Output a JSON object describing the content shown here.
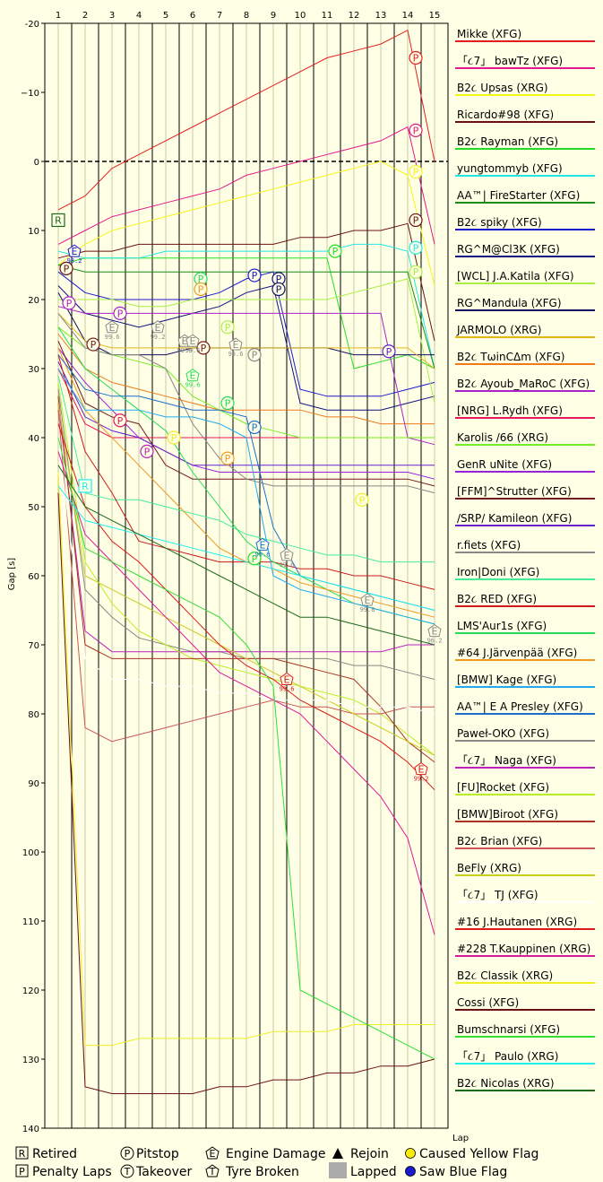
{
  "chart_data": {
    "type": "line",
    "xlabel": "Lap",
    "ylabel": "Gap [s]",
    "xlim": [
      0.5,
      15.5
    ],
    "ylim": [
      -20,
      140
    ],
    "x_ticks": [
      1,
      2,
      3,
      4,
      5,
      6,
      7,
      8,
      9,
      10,
      11,
      12,
      13,
      14,
      15
    ],
    "y_ticks": [
      -20,
      -10,
      0,
      10,
      20,
      30,
      40,
      50,
      60,
      70,
      80,
      90,
      100,
      110,
      120,
      130,
      140
    ],
    "y_tick_labels": [
      "-20",
      "−10",
      "0",
      "10",
      "20",
      "30",
      "40",
      "50",
      "60",
      "70",
      "80",
      "90",
      "100",
      "110",
      "120",
      "130",
      "140"
    ],
    "zero_line": 0,
    "series": [
      {
        "name": "Mikke (XFG)",
        "color": "#e02020",
        "values": [
          7,
          5,
          1,
          -1,
          -3,
          -5,
          -7,
          -9,
          -11,
          -13,
          -15,
          -16,
          -17,
          -19,
          0
        ]
      },
      {
        "name": "「૮7」 bawTz (XFG)",
        "color": "#e01a8c",
        "values": [
          12,
          10,
          8,
          7,
          6,
          5,
          4,
          2,
          1,
          0,
          -1,
          -2,
          -3,
          -5,
          12
        ]
      },
      {
        "name": "B2૮ Upsas (XRG)",
        "color": "#f5f51a",
        "values": [
          15,
          12,
          10,
          9,
          8,
          7,
          6,
          5,
          4,
          3,
          2,
          1,
          0,
          2,
          18
        ]
      },
      {
        "name": "Ricardo#98 (XFG)",
        "color": "#6b1010",
        "values": [
          14,
          13,
          13,
          12,
          12,
          12,
          12,
          12,
          12,
          11,
          11,
          10,
          10,
          9,
          26
        ]
      },
      {
        "name": "B2૮ Rayman (XFG)",
        "color": "#22dd22",
        "values": [
          15,
          14,
          14,
          14,
          14,
          14,
          14,
          14,
          14,
          14,
          14,
          30,
          29,
          28,
          30
        ]
      },
      {
        "name": "yungtommyb (XFG)",
        "color": "#22e5e5",
        "values": [
          13,
          14,
          14,
          14,
          13,
          13,
          13,
          13,
          13,
          13,
          13,
          12,
          12,
          13,
          30
        ]
      },
      {
        "name": "AA™| FireStarter (XFG)",
        "color": "#1a8c1a",
        "values": [
          15,
          16,
          16,
          16,
          16,
          16,
          16,
          16,
          16,
          16,
          16,
          16,
          16,
          16,
          30
        ]
      },
      {
        "name": "B2૮ spiky (XFG)",
        "color": "#1a1acc",
        "values": [
          16,
          19,
          20,
          20,
          20,
          20,
          19,
          17,
          16,
          33,
          34,
          34,
          34,
          33,
          32
        ]
      },
      {
        "name": "RG^M@Cl3K (XFG)",
        "color": "#101080",
        "values": [
          18,
          22,
          23,
          24,
          23,
          22,
          21,
          19,
          18,
          35,
          36,
          36,
          36,
          35,
          34
        ]
      },
      {
        "name": "[WCL] J.A.Katila (XFG)",
        "color": "#aaee44",
        "values": [
          20,
          20,
          20,
          21,
          21,
          20,
          20,
          20,
          20,
          20,
          20,
          19,
          18,
          17,
          35
        ]
      },
      {
        "name": "RG^Mandula (XFG)",
        "color": "#101060",
        "values": [
          19,
          26,
          28,
          28,
          28,
          27,
          27,
          27,
          27,
          27,
          27,
          28,
          28,
          28,
          28
        ]
      },
      {
        "name": "JARMOLO (XRG)",
        "color": "#e5b81a",
        "values": [
          22,
          26,
          27,
          27,
          27,
          27,
          27,
          27,
          27,
          27,
          27,
          27,
          27,
          27,
          30
        ]
      },
      {
        "name": "B2૮ TωinCΔm (XFG)",
        "color": "#ee7a1a",
        "values": [
          25,
          30,
          32,
          33,
          34,
          35,
          36,
          36,
          36,
          36,
          37,
          37,
          38,
          38,
          38
        ]
      },
      {
        "name": "B2૮ Ayoub_MaRoC (XFG)",
        "color": "#aa22cc",
        "values": [
          21,
          22,
          22,
          22,
          22,
          22,
          22,
          22,
          22,
          22,
          22,
          22,
          22,
          40,
          41
        ]
      },
      {
        "name": "[NRG] L.Rydh (XFG)",
        "color": "#e51a5c",
        "values": [
          30,
          38,
          40,
          40,
          40,
          40,
          40,
          40,
          40,
          40,
          40,
          40,
          40,
          40,
          40
        ]
      },
      {
        "name": "Karolis /66 (XRG)",
        "color": "#77ee22",
        "values": [
          24,
          27,
          28,
          29,
          30,
          34,
          36,
          38,
          39,
          40,
          40,
          40,
          40,
          40,
          40
        ]
      },
      {
        "name": "GenR uNite (XFG)",
        "color": "#9922dd",
        "values": [
          27,
          32,
          36,
          40,
          42,
          44,
          45,
          45,
          45,
          45,
          45,
          45,
          45,
          45,
          46
        ]
      },
      {
        "name": "[FFM]^Strutter (XFG)",
        "color": "#701a1a",
        "values": [
          26,
          35,
          37,
          38,
          44,
          46,
          46,
          46,
          46,
          46,
          46,
          46,
          46,
          46,
          47
        ]
      },
      {
        "name": "/SRP/ Kamileon (XFG)",
        "color": "#6622cc",
        "values": [
          29,
          37,
          39,
          40,
          42,
          44,
          44,
          44,
          44,
          44,
          44,
          44,
          44,
          44,
          44
        ]
      },
      {
        "name": "r.fiets (XFG)",
        "color": "#888888",
        "values": [
          22,
          27,
          28,
          28,
          30,
          38,
          43,
          46,
          47,
          47,
          47,
          47,
          47,
          47,
          48
        ]
      },
      {
        "name": "Iron|Doni (XFG)",
        "color": "#44ee99",
        "values": [
          31,
          48,
          49,
          49,
          50,
          51,
          52,
          54,
          55,
          56,
          57,
          57,
          58,
          58,
          58
        ]
      },
      {
        "name": "B2૮ RED (XFG)",
        "color": "#cc1a1a",
        "values": [
          28,
          42,
          48,
          55,
          56,
          57,
          58,
          58,
          58,
          59,
          59,
          60,
          60,
          61,
          62
        ]
      },
      {
        "name": "LMS'Aur1s (XFG)",
        "color": "#22dd55",
        "values": [
          24,
          30,
          33,
          36,
          39,
          45,
          50,
          55,
          58,
          60,
          62,
          64,
          65,
          66,
          67
        ]
      },
      {
        "name": "#64 J.Järvenpää (XFG)",
        "color": "#ee9922",
        "values": [
          27,
          36,
          40,
          44,
          48,
          52,
          56,
          58,
          59,
          61,
          62,
          63,
          64,
          65,
          66
        ]
      },
      {
        "name": "[BMW] Kage (XFG)",
        "color": "#22aaee",
        "values": [
          30,
          36,
          36,
          36,
          37,
          37,
          38,
          40,
          60,
          62,
          63,
          64,
          65,
          66,
          67
        ]
      },
      {
        "name": "AA™| E A Presley (XFG)",
        "color": "#1a6ecc",
        "values": [
          28,
          33,
          34,
          34,
          35,
          36,
          36,
          37,
          53,
          60,
          61,
          62,
          63,
          64,
          65
        ]
      },
      {
        "name": "Paweł-OKO (XFG)",
        "color": "#888888",
        "values": [
          33,
          62,
          66,
          69,
          70,
          71,
          71,
          72,
          72,
          72,
          72,
          73,
          73,
          74,
          75
        ]
      },
      {
        "name": "「૮7」 Naga (XFG)",
        "color": "#bb22bb",
        "values": [
          35,
          68,
          71,
          71,
          71,
          71,
          71,
          71,
          71,
          71,
          71,
          71,
          71,
          70,
          70
        ]
      },
      {
        "name": "[FU]Rocket (XFG)",
        "color": "#bbee22",
        "values": [
          32,
          58,
          64,
          68,
          70,
          72,
          73,
          74,
          75,
          76,
          77,
          78,
          80,
          83,
          86
        ]
      },
      {
        "name": "[BMW]Biroot (XFG)",
        "color": "#aa3322",
        "values": [
          34,
          70,
          72,
          72,
          72,
          72,
          72,
          72,
          72,
          73,
          74,
          75,
          79,
          84,
          87
        ]
      },
      {
        "name": "B2૮ Brian (XFG)",
        "color": "#cc5555",
        "values": [
          36,
          82,
          84,
          83,
          82,
          81,
          80,
          79,
          78,
          79,
          79,
          80,
          80,
          79,
          79
        ]
      },
      {
        "name": "BeFly (XRG)",
        "color": "#cccc22",
        "values": [
          35,
          60,
          62,
          64,
          66,
          68,
          70,
          72,
          74,
          76,
          78,
          80,
          82,
          84,
          86
        ]
      },
      {
        "name": "「૮7」  TJ (XFG)",
        "color": "#ffffff",
        "values": [
          40,
          72,
          75,
          75,
          76,
          76,
          77,
          77,
          78,
          78,
          78,
          79,
          79,
          79,
          80
        ]
      },
      {
        "name": "#16 J.Hautanen (XRG)",
        "color": "#dd1a1a",
        "values": [
          38,
          50,
          55,
          58,
          62,
          66,
          70,
          73,
          75,
          78,
          80,
          82,
          84,
          87,
          91
        ]
      },
      {
        "name": "#228 T.Kauppinen (XRG)",
        "color": "#dd1a99",
        "values": [
          42,
          54,
          58,
          62,
          66,
          70,
          74,
          76,
          78,
          80,
          84,
          88,
          92,
          98,
          112
        ]
      },
      {
        "name": "B2૮ Classik (XRG)",
        "color": "#eeee22",
        "values": [
          45,
          128,
          128,
          127,
          127,
          127,
          127,
          127,
          126,
          126,
          126,
          125,
          125,
          125,
          125
        ]
      },
      {
        "name": "Cossi (XFG)",
        "color": "#6b1010",
        "values": [
          48,
          134,
          135,
          135,
          135,
          135,
          134,
          134,
          133,
          133,
          132,
          132,
          131,
          131,
          130
        ]
      },
      {
        "name": "Bumschnarsi (XFG)",
        "color": "#33dd33",
        "values": [
          40,
          56,
          58,
          60,
          62,
          64,
          66,
          70,
          76,
          120,
          122,
          124,
          126,
          128,
          130
        ]
      },
      {
        "name": "「૮7」 Paulo (XRG)",
        "color": "#22eeee",
        "values": [
          47,
          52,
          53,
          54,
          55,
          56,
          57,
          58,
          59,
          60,
          61,
          62,
          63,
          64,
          65
        ]
      },
      {
        "name": "B2૮ Nicolas (XRG)",
        "color": "#1a6a1a",
        "values": [
          44,
          50,
          52,
          54,
          56,
          58,
          60,
          62,
          64,
          66,
          66,
          67,
          68,
          69,
          70
        ]
      }
    ],
    "key": {
      "retired": "Retired",
      "pitstop": "Pitstop",
      "engine_damage": "Engine Damage",
      "rejoin": "Rejoin",
      "caused_yellow": "Caused Yellow Flag",
      "penalty_laps": "Penalty Laps",
      "takeover": "Takeover",
      "tyre_broken": "Tyre Broken",
      "lapped": "Lapped",
      "saw_blue": "Saw Blue Flag"
    },
    "events": [
      {
        "type": "R",
        "lap": 1,
        "gap": 8.5,
        "color": "#1a6a1a"
      },
      {
        "type": "R",
        "lap": 2,
        "gap": 47,
        "color": "#22eeee"
      },
      {
        "type": "P",
        "lap": 1.3,
        "gap": 15.5,
        "color": "#6b1010"
      },
      {
        "type": "P",
        "lap": 1.4,
        "gap": 20.5,
        "color": "#aa22cc"
      },
      {
        "type": "P",
        "lap": 2.3,
        "gap": 26.5,
        "color": "#701a1a"
      },
      {
        "type": "P",
        "lap": 3.3,
        "gap": 22,
        "color": "#aa22cc"
      },
      {
        "type": "P",
        "lap": 3.3,
        "gap": 37.5,
        "color": "#e51a5c"
      },
      {
        "type": "P",
        "lap": 4.3,
        "gap": 42,
        "color": "#bb22bb"
      },
      {
        "type": "P",
        "lap": 5.3,
        "gap": 40,
        "color": "#eeee22"
      },
      {
        "type": "P",
        "lap": 6.3,
        "gap": 17,
        "color": "#22dd55"
      },
      {
        "type": "P",
        "lap": 6.3,
        "gap": 18.5,
        "color": "#ee9922"
      },
      {
        "type": "P",
        "lap": 6.4,
        "gap": 27,
        "color": "#701a1a"
      },
      {
        "type": "P",
        "lap": 7.3,
        "gap": 24,
        "color": "#aaee44"
      },
      {
        "type": "P",
        "lap": 7.3,
        "gap": 35,
        "color": "#22dd55"
      },
      {
        "type": "P",
        "lap": 7.3,
        "gap": 43,
        "color": "#ee9922"
      },
      {
        "type": "P",
        "lap": 8.3,
        "gap": 16.5,
        "color": "#1a1acc"
      },
      {
        "type": "P",
        "lap": 8.3,
        "gap": 28,
        "color": "#888888"
      },
      {
        "type": "P",
        "lap": 8.3,
        "gap": 38.5,
        "color": "#1a6ecc"
      },
      {
        "type": "P",
        "lap": 8.3,
        "gap": 57.5,
        "color": "#22dd22"
      },
      {
        "type": "P",
        "lap": 9.2,
        "gap": 17,
        "color": "#101080"
      },
      {
        "type": "P",
        "lap": 9.2,
        "gap": 18.5,
        "color": "#101060"
      },
      {
        "type": "P",
        "lap": 11.3,
        "gap": 13,
        "color": "#22dd22"
      },
      {
        "type": "P",
        "lap": 12.3,
        "gap": 49,
        "color": "#eeee22"
      },
      {
        "type": "P",
        "lap": 13.3,
        "gap": 27.5,
        "color": "#6622cc"
      },
      {
        "type": "P",
        "lap": 14.3,
        "gap": -15,
        "color": "#e02020"
      },
      {
        "type": "P",
        "lap": 14.3,
        "gap": -4.5,
        "color": "#e01a8c"
      },
      {
        "type": "P",
        "lap": 14.3,
        "gap": 1.5,
        "color": "#f5f51a"
      },
      {
        "type": "P",
        "lap": 14.3,
        "gap": 8.5,
        "color": "#6b1010"
      },
      {
        "type": "P",
        "lap": 14.3,
        "gap": 12.5,
        "color": "#22e5e5"
      },
      {
        "type": "P",
        "lap": 14.3,
        "gap": 16,
        "color": "#aaee44"
      },
      {
        "type": "E",
        "lap": 1.6,
        "gap": 13,
        "color": "#1a1acc",
        "label": "98.2"
      },
      {
        "type": "E",
        "lap": 3.0,
        "gap": 24,
        "color": "#888888",
        "label": "99.6"
      },
      {
        "type": "E",
        "lap": 4.7,
        "gap": 24,
        "color": "#888888",
        "label": "99.2"
      },
      {
        "type": "E",
        "lap": 5.7,
        "gap": 26,
        "color": "#888888",
        "label": "99.6"
      },
      {
        "type": "E",
        "lap": 6.0,
        "gap": 26,
        "color": "#888888",
        "label": "99.6"
      },
      {
        "type": "E",
        "lap": 6.0,
        "gap": 31,
        "color": "#22dd55",
        "label": "99.6"
      },
      {
        "type": "E",
        "lap": 7.6,
        "gap": 26.5,
        "color": "#888888",
        "label": "99.6"
      },
      {
        "type": "E",
        "lap": 8.6,
        "gap": 55.5,
        "color": "#1a6ecc",
        "label": "99.6"
      },
      {
        "type": "E",
        "lap": 9.5,
        "gap": 57,
        "color": "#888888",
        "label": "99.6"
      },
      {
        "type": "E",
        "lap": 9.5,
        "gap": 75,
        "color": "#dd1a1a",
        "label": "99.6"
      },
      {
        "type": "E",
        "lap": 12.5,
        "gap": 63.5,
        "color": "#888888",
        "label": "99.8"
      },
      {
        "type": "E",
        "lap": 14.5,
        "gap": 88,
        "color": "#dd1a1a",
        "label": "99.2"
      },
      {
        "type": "E",
        "lap": 15.0,
        "gap": 68,
        "color": "#888888",
        "label": "96.2"
      }
    ]
  }
}
